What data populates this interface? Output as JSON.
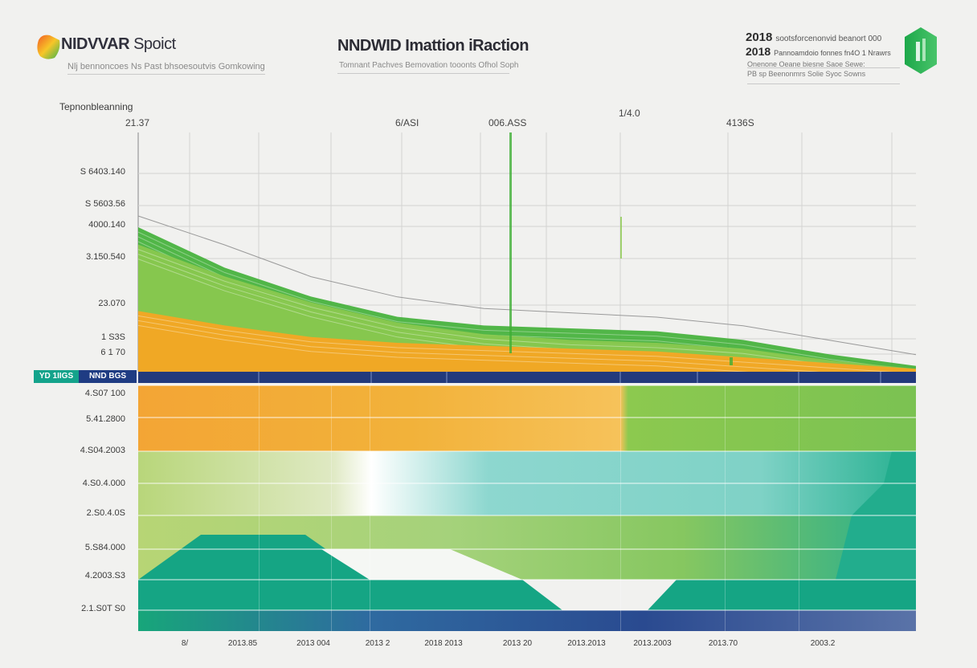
{
  "header": {
    "brand_name": "NIDVVAR",
    "brand_suffix": "Spoict",
    "brand_subtitle": "Nlj bennoncoes Ns Past bhsoesoutvis Gomkowing",
    "title": "NNDWID Imattion iRaction",
    "subtitle": "Tomnant Pachves Bemovation tooonts Ofhol Soph",
    "right_line1_num": "2018",
    "right_line1_text": "sootsforcenonvid beanort 000",
    "right_line2_num": "2018",
    "right_line2_text": "Pannoamdoio fonnes fn4O 1 Nrawrs",
    "right_line3": "Onenone Oeane biesne Saoe Sewe:",
    "right_line4": "PB sp Beenonmrs Solie Syoc Sowns"
  },
  "side_note": "Tepnonbleanning",
  "top_labels": [
    "21.37",
    "6/ASI",
    "006.ASS",
    "1/4.0",
    "4136S"
  ],
  "band_tags": {
    "left": "YD 1IIGS",
    "right": "NND BGS"
  },
  "colors": {
    "green": "#3faf35",
    "light_green": "#8cc94f",
    "orange": "#f5a623",
    "yellow": "#f7c844",
    "teal": "#15a584",
    "aqua": "#7fd6cf",
    "navy": "#233a7c",
    "logo_green": "#21b34a"
  },
  "chart_data": {
    "type": "area",
    "x": [
      "8/",
      "2013.85",
      "2013 004",
      "2013 2",
      "2018 2013",
      "2013 20",
      "2013.2013",
      "2013.2003",
      "2013.70",
      "2003.2"
    ],
    "upper_panel": {
      "y_tick_labels": [
        "S 6403.140",
        "S 5603.56",
        "4000.140",
        "3.150.540",
        "23.070",
        "1 S3S",
        "6 1 70"
      ],
      "series": [
        {
          "name": "",
          "color": "green",
          "values": [
            100,
            72,
            52,
            38,
            32,
            30,
            28,
            22,
            12,
            4
          ]
        },
        {
          "name": "",
          "color": "light_green",
          "values": [
            88,
            66,
            48,
            34,
            26,
            22,
            20,
            16,
            8,
            2
          ]
        },
        {
          "name": "",
          "color": "orange",
          "values": [
            42,
            32,
            24,
            20,
            18,
            16,
            14,
            10,
            6,
            2
          ]
        }
      ],
      "annotations": [
        "6/ASI",
        "006.ASS",
        "1/4.0",
        "4136S"
      ]
    },
    "lower_panel": {
      "y_tick_labels": [
        "4.S07 100",
        "5.41.2800",
        "4.S04.2003",
        "4.S0.4.000",
        "2.S0.4.0S",
        "5.S84.000",
        "4.2003.S3",
        "2.1.S0T S0"
      ],
      "bands": [
        {
          "name": "",
          "color": "orange",
          "values": [
            100,
            100,
            95,
            80,
            40,
            35,
            30,
            30,
            30,
            30
          ]
        },
        {
          "name": "",
          "color": "light_green",
          "values": [
            70,
            70,
            68,
            65,
            60,
            55,
            52,
            50,
            48,
            40
          ]
        },
        {
          "name": "",
          "color": "aqua",
          "values": [
            0,
            0,
            0,
            62,
            65,
            66,
            64,
            60,
            58,
            62
          ]
        },
        {
          "name": "",
          "color": "teal",
          "values": [
            36,
            44,
            44,
            30,
            18,
            10,
            10,
            30,
            30,
            50
          ]
        },
        {
          "name": "",
          "color": "navy",
          "values": [
            5,
            5,
            5,
            5,
            5,
            5,
            5,
            5,
            5,
            5
          ]
        }
      ]
    },
    "grid": true
  }
}
